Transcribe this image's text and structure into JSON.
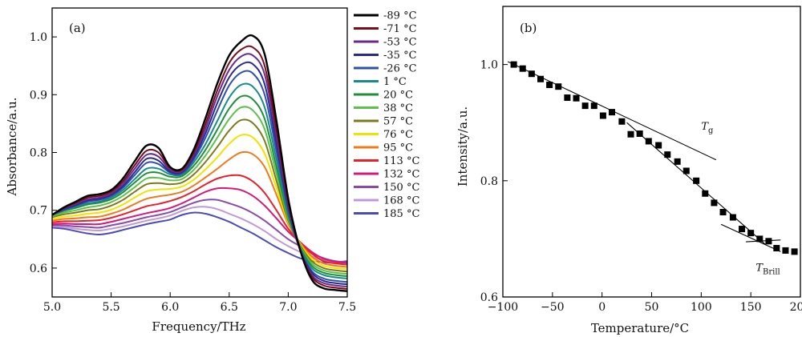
{
  "chart_data": [
    {
      "type": "line",
      "panel_label": "(a)",
      "xlabel": "Frequency/THz",
      "ylabel": "Absorbance/a.u.",
      "xlim": [
        5.0,
        7.5
      ],
      "ylim": [
        0.55,
        1.05
      ],
      "xticks": [
        5.0,
        5.5,
        6.0,
        6.5,
        7.0,
        7.5
      ],
      "xtick_labels": [
        "5.0",
        "5.5",
        "6.0",
        "6.5",
        "7.0",
        "7.5"
      ],
      "yticks": [
        0.6,
        0.7,
        0.8,
        0.9,
        1.0
      ],
      "ytick_labels": [
        "0.6",
        "0.7",
        "0.8",
        "0.9",
        "1.0"
      ],
      "legend_position": "right",
      "x": [
        5.0,
        5.1,
        5.2,
        5.3,
        5.4,
        5.5,
        5.6,
        5.7,
        5.8,
        5.9,
        6.0,
        6.1,
        6.2,
        6.3,
        6.4,
        6.5,
        6.6,
        6.7,
        6.8,
        6.9,
        7.0,
        7.1,
        7.2,
        7.3,
        7.4,
        7.5
      ],
      "series": [
        {
          "name": "-89 °C",
          "color": "#000000",
          "values": [
            0.692,
            0.705,
            0.715,
            0.725,
            0.728,
            0.735,
            0.755,
            0.785,
            0.812,
            0.808,
            0.775,
            0.772,
            0.805,
            0.86,
            0.92,
            0.968,
            0.992,
            1.002,
            0.97,
            0.855,
            0.72,
            0.632,
            0.58,
            0.565,
            0.562,
            0.56
          ]
        },
        {
          "name": "-71 °C",
          "color": "#7a0c1c",
          "values": [
            0.692,
            0.704,
            0.713,
            0.722,
            0.725,
            0.732,
            0.75,
            0.778,
            0.803,
            0.8,
            0.773,
            0.77,
            0.8,
            0.85,
            0.908,
            0.955,
            0.978,
            0.982,
            0.95,
            0.84,
            0.715,
            0.632,
            0.585,
            0.57,
            0.566,
            0.564
          ]
        },
        {
          "name": "-53 °C",
          "color": "#6a2a8a",
          "values": [
            0.692,
            0.703,
            0.711,
            0.719,
            0.722,
            0.729,
            0.746,
            0.772,
            0.796,
            0.793,
            0.77,
            0.768,
            0.796,
            0.842,
            0.898,
            0.943,
            0.966,
            0.968,
            0.935,
            0.828,
            0.71,
            0.632,
            0.588,
            0.574,
            0.57,
            0.568
          ]
        },
        {
          "name": "-35 °C",
          "color": "#2a2a8f",
          "values": [
            0.692,
            0.702,
            0.709,
            0.717,
            0.72,
            0.727,
            0.742,
            0.766,
            0.789,
            0.786,
            0.767,
            0.766,
            0.792,
            0.834,
            0.886,
            0.93,
            0.952,
            0.953,
            0.918,
            0.815,
            0.705,
            0.632,
            0.592,
            0.578,
            0.574,
            0.572
          ]
        },
        {
          "name": "-26 °C",
          "color": "#2f4fb0",
          "values": [
            0.692,
            0.701,
            0.708,
            0.715,
            0.718,
            0.725,
            0.739,
            0.761,
            0.782,
            0.78,
            0.765,
            0.764,
            0.788,
            0.826,
            0.873,
            0.916,
            0.938,
            0.937,
            0.9,
            0.802,
            0.7,
            0.632,
            0.595,
            0.582,
            0.578,
            0.576
          ]
        },
        {
          "name": "1 °C",
          "color": "#178a8a",
          "values": [
            0.692,
            0.7,
            0.706,
            0.712,
            0.715,
            0.722,
            0.735,
            0.754,
            0.772,
            0.772,
            0.762,
            0.762,
            0.783,
            0.815,
            0.855,
            0.895,
            0.917,
            0.914,
            0.878,
            0.788,
            0.695,
            0.634,
            0.6,
            0.588,
            0.584,
            0.582
          ]
        },
        {
          "name": "20 °C",
          "color": "#1e8f3a",
          "values": [
            0.692,
            0.699,
            0.704,
            0.71,
            0.713,
            0.719,
            0.731,
            0.748,
            0.764,
            0.765,
            0.758,
            0.759,
            0.777,
            0.805,
            0.84,
            0.876,
            0.897,
            0.892,
            0.858,
            0.775,
            0.69,
            0.636,
            0.604,
            0.592,
            0.588,
            0.586
          ]
        },
        {
          "name": "38 °C",
          "color": "#5cc04a",
          "values": [
            0.69,
            0.696,
            0.7,
            0.705,
            0.708,
            0.714,
            0.725,
            0.74,
            0.755,
            0.756,
            0.752,
            0.754,
            0.77,
            0.795,
            0.826,
            0.858,
            0.878,
            0.873,
            0.84,
            0.763,
            0.686,
            0.638,
            0.608,
            0.596,
            0.592,
            0.59
          ]
        },
        {
          "name": "57 °C",
          "color": "#7a7a1e",
          "values": [
            0.688,
            0.693,
            0.696,
            0.7,
            0.702,
            0.708,
            0.718,
            0.732,
            0.745,
            0.747,
            0.745,
            0.748,
            0.762,
            0.784,
            0.81,
            0.838,
            0.856,
            0.851,
            0.82,
            0.751,
            0.682,
            0.64,
            0.612,
            0.6,
            0.596,
            0.594
          ]
        },
        {
          "name": "76 °C",
          "color": "#f2e200",
          "values": [
            0.685,
            0.689,
            0.691,
            0.694,
            0.696,
            0.701,
            0.71,
            0.722,
            0.733,
            0.736,
            0.737,
            0.741,
            0.753,
            0.771,
            0.792,
            0.815,
            0.83,
            0.826,
            0.798,
            0.739,
            0.679,
            0.642,
            0.616,
            0.604,
            0.6,
            0.598
          ]
        },
        {
          "name": "95 °C",
          "color": "#f07a1a",
          "values": [
            0.682,
            0.685,
            0.686,
            0.688,
            0.689,
            0.694,
            0.701,
            0.711,
            0.72,
            0.724,
            0.727,
            0.732,
            0.743,
            0.757,
            0.772,
            0.788,
            0.8,
            0.797,
            0.775,
            0.727,
            0.676,
            0.644,
            0.62,
            0.608,
            0.604,
            0.602
          ]
        },
        {
          "name": "113 °C",
          "color": "#e8202a",
          "values": [
            0.679,
            0.681,
            0.681,
            0.682,
            0.683,
            0.687,
            0.693,
            0.7,
            0.707,
            0.711,
            0.716,
            0.723,
            0.733,
            0.745,
            0.755,
            0.76,
            0.76,
            0.75,
            0.73,
            0.7,
            0.668,
            0.645,
            0.625,
            0.612,
            0.608,
            0.606
          ]
        },
        {
          "name": "132 °C",
          "color": "#d6187a",
          "values": [
            0.676,
            0.677,
            0.676,
            0.676,
            0.676,
            0.68,
            0.685,
            0.69,
            0.695,
            0.699,
            0.704,
            0.712,
            0.722,
            0.732,
            0.738,
            0.738,
            0.735,
            0.725,
            0.708,
            0.686,
            0.663,
            0.645,
            0.628,
            0.616,
            0.611,
            0.609
          ]
        },
        {
          "name": "150 °C",
          "color": "#8a4aa8",
          "values": [
            0.674,
            0.674,
            0.672,
            0.671,
            0.67,
            0.674,
            0.678,
            0.683,
            0.688,
            0.692,
            0.697,
            0.705,
            0.713,
            0.718,
            0.718,
            0.712,
            0.705,
            0.695,
            0.682,
            0.666,
            0.65,
            0.638,
            0.626,
            0.617,
            0.612,
            0.61
          ]
        },
        {
          "name": "168 °C",
          "color": "#c098d8",
          "values": [
            0.672,
            0.671,
            0.668,
            0.666,
            0.665,
            0.668,
            0.672,
            0.677,
            0.682,
            0.686,
            0.691,
            0.699,
            0.705,
            0.706,
            0.702,
            0.694,
            0.686,
            0.676,
            0.664,
            0.65,
            0.638,
            0.628,
            0.62,
            0.614,
            0.61,
            0.609
          ]
        },
        {
          "name": "185 °C",
          "color": "#4a4ab8",
          "values": [
            0.67,
            0.668,
            0.664,
            0.66,
            0.658,
            0.661,
            0.666,
            0.671,
            0.676,
            0.68,
            0.684,
            0.692,
            0.696,
            0.694,
            0.688,
            0.68,
            0.67,
            0.66,
            0.648,
            0.636,
            0.626,
            0.617,
            0.612,
            0.61,
            0.61,
            0.612
          ]
        }
      ]
    },
    {
      "type": "scatter",
      "panel_label": "(b)",
      "xlabel": "Temperature/°C",
      "ylabel": "Intensity/a.u.",
      "xlim": [
        -100,
        200
      ],
      "ylim": [
        0.6,
        1.1
      ],
      "xticks": [
        -100,
        -50,
        0,
        50,
        100,
        150,
        200
      ],
      "xtick_labels": [
        "−100",
        "−50",
        "0",
        "50",
        "100",
        "150",
        "200"
      ],
      "yticks": [
        0.6,
        0.8,
        1.0
      ],
      "ytick_labels": [
        "0.6",
        "0.8",
        "1.0"
      ],
      "x": [
        -89,
        -80,
        -71,
        -62,
        -53,
        -44,
        -35,
        -26,
        -17,
        -8,
        1,
        10,
        20,
        29,
        38,
        47,
        57,
        66,
        76,
        85,
        95,
        104,
        113,
        122,
        132,
        141,
        150,
        159,
        168,
        176,
        185,
        194
      ],
      "values": [
        1.0,
        0.993,
        0.984,
        0.975,
        0.965,
        0.962,
        0.943,
        0.942,
        0.929,
        0.929,
        0.912,
        0.918,
        0.902,
        0.88,
        0.881,
        0.868,
        0.861,
        0.845,
        0.833,
        0.817,
        0.8,
        0.778,
        0.762,
        0.746,
        0.737,
        0.717,
        0.71,
        0.7,
        0.696,
        0.684,
        0.68,
        0.678
      ],
      "fit_lines": [
        {
          "from": [
            -95,
            1.005
          ],
          "to": [
            115,
            0.836
          ]
        },
        {
          "from": [
            25,
            0.9
          ],
          "to": [
            165,
            0.69
          ]
        },
        {
          "from": [
            120,
            0.725
          ],
          "to": [
            180,
            0.678
          ]
        },
        {
          "from": [
            145,
            0.695
          ],
          "to": [
            180,
            0.698
          ]
        }
      ],
      "annotations": [
        {
          "text": "T",
          "subscript": "g",
          "x": 100,
          "y": 0.888
        },
        {
          "text": "T",
          "subscript": "Brill",
          "x": 155,
          "y": 0.645
        }
      ]
    }
  ]
}
